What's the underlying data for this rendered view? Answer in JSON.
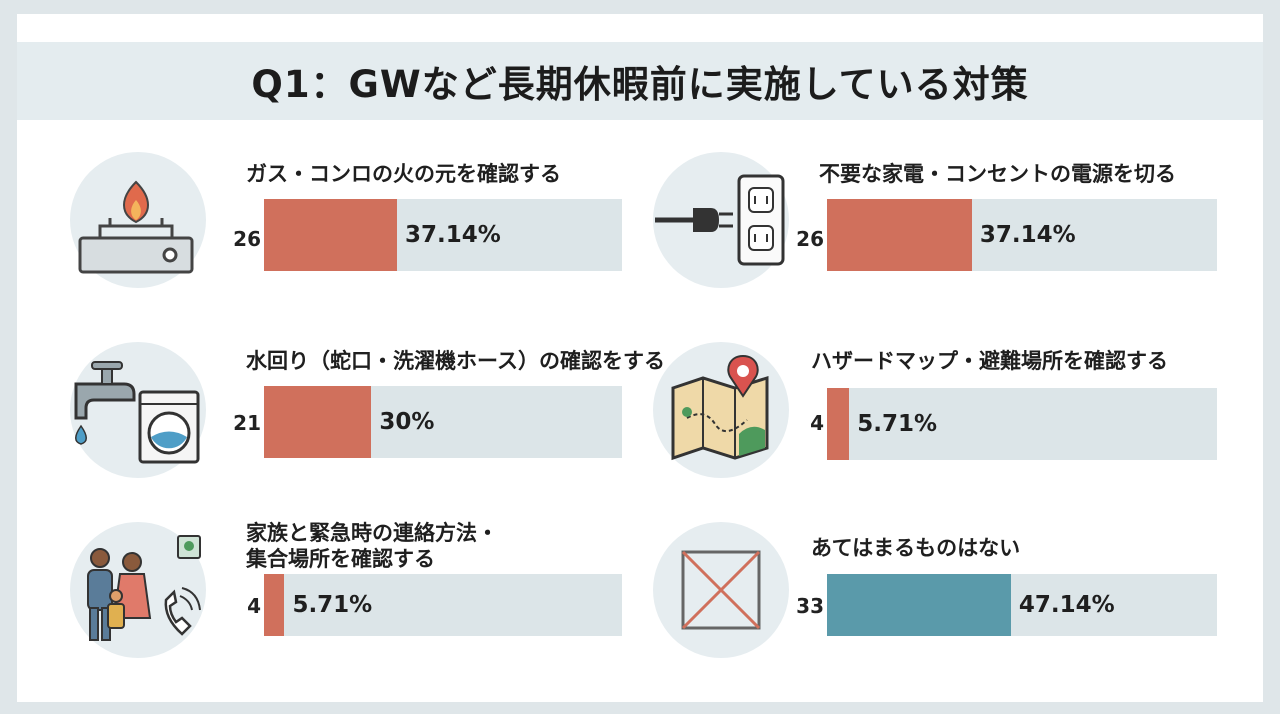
{
  "title": "Q1：GWなど長期休暇前に実施している対策",
  "colors": {
    "bar": "#d0705c",
    "bar_highlight": "#5a9aaa",
    "track": "#dce5e8"
  },
  "chart_data": {
    "type": "bar",
    "title": "Q1：GWなど長期休暇前に実施している対策",
    "categories": [
      "ガス・コンロの火の元を確認する",
      "不要な家電・コンセントの電源を切る",
      "水回り（蛇口・洗濯機ホース）の確認をする",
      "ハザードマップ・避難場所を確認する",
      "家族と緊急時の連絡方法・集合場所を確認する",
      "あてはまるものはない"
    ],
    "counts": [
      26,
      26,
      21,
      4,
      4,
      33
    ],
    "values": [
      37.14,
      37.14,
      30,
      5.71,
      5.71,
      47.14
    ],
    "ylim": [
      0,
      100
    ]
  },
  "items": [
    {
      "label": "ガス・コンロの火の元を確認する",
      "count": "26",
      "pct": "37.14%",
      "value": 37.14,
      "icon": "gas-stove-icon",
      "highlight": false
    },
    {
      "label": "不要な家電・コンセントの電源を切る",
      "count": "26",
      "pct": "37.14%",
      "value": 37.14,
      "icon": "power-plug-outlet-icon",
      "highlight": false
    },
    {
      "label": "水回り（蛇口・洗濯機ホース）の確認をする",
      "count": "21",
      "pct": "30%",
      "value": 30,
      "icon": "faucet-washing-machine-icon",
      "highlight": false
    },
    {
      "label": "ハザードマップ・避難場所を確認する",
      "count": "4",
      "pct": "5.71%",
      "value": 5.71,
      "icon": "hazard-map-icon",
      "highlight": false
    },
    {
      "label1": "家族と緊急時の連絡方法・",
      "label2": "集合場所を確認する",
      "count": "4",
      "pct": "5.71%",
      "value": 5.71,
      "icon": "family-phone-icon",
      "highlight": false
    },
    {
      "label": "あてはまるものはない",
      "count": "33",
      "pct": "47.14%",
      "value": 47.14,
      "icon": "cross-box-icon",
      "highlight": true
    }
  ]
}
